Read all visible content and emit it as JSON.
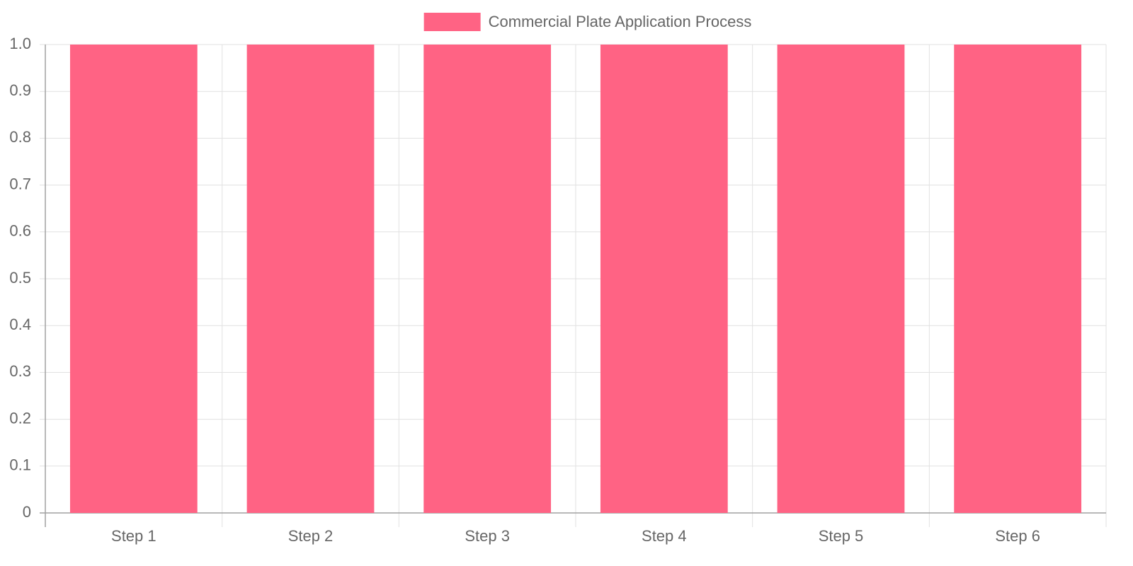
{
  "chart_data": {
    "type": "bar",
    "categories": [
      "Step 1",
      "Step 2",
      "Step 3",
      "Step 4",
      "Step 5",
      "Step 6"
    ],
    "series": [
      {
        "name": "Commercial Plate Application Process",
        "color": "#ff6384",
        "values": [
          1,
          1,
          1,
          1,
          1,
          1
        ]
      }
    ],
    "ylim": [
      0,
      1
    ],
    "yticks": [
      0,
      0.1,
      0.2,
      0.3,
      0.4,
      0.5,
      0.6,
      0.7,
      0.8,
      0.9,
      {
        "value": 1,
        "label": "1.0"
      }
    ],
    "grid": true,
    "legend": "top"
  }
}
